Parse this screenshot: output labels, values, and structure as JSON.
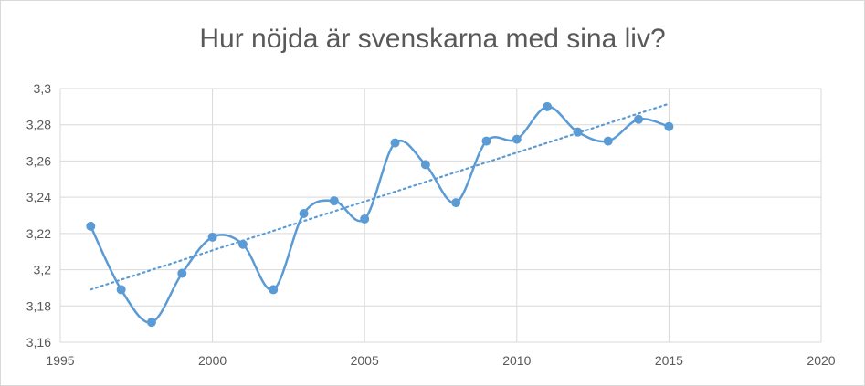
{
  "chart_data": {
    "type": "scatter",
    "title": "Hur nöjda är svenskarna med sina liv?",
    "xlabel": "",
    "ylabel": "",
    "xlim": [
      1995,
      2020
    ],
    "ylim": [
      3.16,
      3.3
    ],
    "x_ticks": [
      1995,
      2000,
      2005,
      2010,
      2015,
      2020
    ],
    "x_tick_labels": [
      "1995",
      "2000",
      "2005",
      "2010",
      "2015",
      "2020"
    ],
    "y_ticks": [
      3.16,
      3.18,
      3.2,
      3.22,
      3.24,
      3.26,
      3.28,
      3.3
    ],
    "y_tick_labels": [
      "3,16",
      "3,18",
      "3,2",
      "3,22",
      "3,24",
      "3,26",
      "3,28",
      "3,3"
    ],
    "grid": true,
    "series": [
      {
        "x": [
          1996,
          1997,
          1998,
          1999,
          2000,
          2001,
          2002,
          2003,
          2004,
          2005,
          2006,
          2007,
          2008,
          2009,
          2010,
          2011,
          2012,
          2013,
          2014,
          2015
        ],
        "values": [
          3.224,
          3.189,
          3.171,
          3.198,
          3.218,
          3.214,
          3.189,
          3.231,
          3.238,
          3.228,
          3.27,
          3.258,
          3.237,
          3.271,
          3.272,
          3.29,
          3.276,
          3.271,
          3.283,
          3.279
        ],
        "color": "#5b9bd5",
        "line": "smooth",
        "markers": true
      }
    ],
    "trendline": {
      "type": "linear",
      "x_range": [
        1996,
        2015
      ],
      "color": "#5b9bd5",
      "style": "dotted"
    }
  }
}
